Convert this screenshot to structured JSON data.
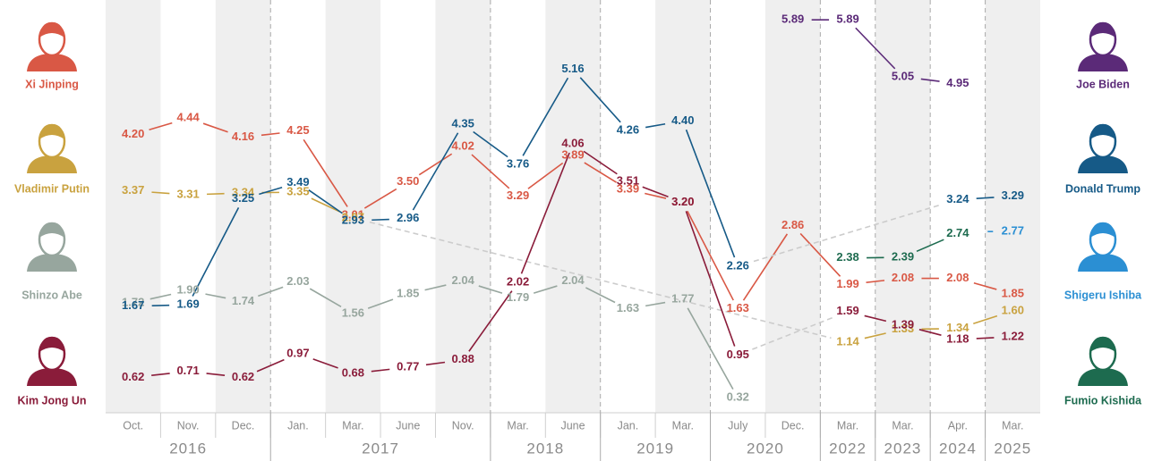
{
  "chart_data": {
    "type": "line",
    "groups": [
      {
        "year": "2016",
        "months": [
          "Oct.",
          "Nov.",
          "Dec."
        ]
      },
      {
        "year": "2017",
        "months": [
          "Jan.",
          "Mar.",
          "June",
          "Nov."
        ]
      },
      {
        "year": "2018",
        "months": [
          "Mar.",
          "June"
        ]
      },
      {
        "year": "2019",
        "months": [
          "Jan.",
          "Mar."
        ]
      },
      {
        "year": "2020",
        "months": [
          "July",
          "Dec."
        ]
      },
      {
        "year": "2022",
        "months": [
          "Mar."
        ]
      },
      {
        "year": "2023",
        "months": [
          "Mar."
        ]
      },
      {
        "year": "2024",
        "months": [
          "Apr."
        ]
      },
      {
        "year": "2025",
        "months": [
          "Mar."
        ]
      }
    ],
    "ylim": [
      0.1,
      6.05
    ],
    "series": [
      {
        "name": "Xi Jinping",
        "color": "#d95845",
        "legend": "left",
        "values": [
          4.2,
          4.44,
          4.16,
          4.25,
          3.01,
          3.5,
          4.02,
          3.29,
          3.89,
          3.39,
          3.2,
          1.63,
          2.86,
          1.99,
          2.08,
          2.08,
          1.85
        ],
        "value_labels": [
          "4.20",
          "4.44",
          "4.16",
          "4.25",
          "3.01",
          "3.50",
          "4.02",
          "3.29",
          "3.89",
          "3.39",
          "3.20",
          "1.63",
          "2.86",
          "1.99",
          "2.08",
          "2.08",
          "1.85"
        ]
      },
      {
        "name": "Vladimir Putin",
        "color": "#c9a23f",
        "legend": "left",
        "values": [
          3.37,
          3.31,
          3.34,
          3.35,
          2.97,
          null,
          null,
          null,
          null,
          null,
          null,
          null,
          null,
          1.14,
          1.33,
          1.34,
          1.6
        ],
        "value_labels": [
          "3.37",
          "3.31",
          "3.34",
          "3.35",
          "2.97",
          null,
          null,
          null,
          null,
          null,
          null,
          null,
          null,
          "1.14",
          "1.33",
          "1.34",
          "1.60"
        ]
      },
      {
        "name": "Shinzo Abe",
        "color": "#97a69e",
        "legend": "left",
        "values": [
          1.72,
          1.9,
          1.74,
          2.03,
          1.56,
          1.85,
          2.04,
          1.79,
          2.04,
          1.63,
          1.77,
          0.32,
          null,
          null,
          null,
          null,
          null
        ],
        "value_labels": [
          "1.72",
          "1.90",
          "1.74",
          "2.03",
          "1.56",
          "1.85",
          "2.04",
          "1.79",
          "2.04",
          "1.63",
          "1.77",
          "0.32",
          null,
          null,
          null,
          null,
          null
        ]
      },
      {
        "name": "Kim Jong Un",
        "color": "#8a1c3a",
        "legend": "left",
        "values": [
          0.62,
          0.71,
          0.62,
          0.97,
          0.68,
          0.77,
          0.88,
          2.02,
          4.06,
          3.51,
          3.2,
          0.95,
          null,
          1.59,
          1.39,
          1.18,
          1.22
        ],
        "value_labels": [
          "0.62",
          "0.71",
          "0.62",
          "0.97",
          "0.68",
          "0.77",
          "0.88",
          "2.02",
          "4.06",
          "3.51",
          "3.20",
          "0.95",
          null,
          "1.59",
          "1.39",
          "1.18",
          "1.22"
        ]
      },
      {
        "name": "Joe Biden",
        "color": "#5b2a78",
        "legend": "right",
        "values": [
          null,
          null,
          null,
          null,
          null,
          null,
          null,
          null,
          null,
          null,
          null,
          null,
          5.89,
          5.89,
          5.05,
          4.95,
          null
        ],
        "value_labels": [
          null,
          null,
          null,
          null,
          null,
          null,
          null,
          null,
          null,
          null,
          null,
          null,
          "5.89",
          "5.89",
          "5.05",
          "4.95",
          null
        ]
      },
      {
        "name": "Donald Trump",
        "color": "#165a87",
        "legend": "right",
        "values": [
          1.67,
          1.69,
          3.25,
          3.49,
          2.93,
          2.96,
          4.35,
          3.76,
          5.16,
          4.26,
          4.4,
          2.26,
          null,
          null,
          null,
          3.24,
          3.29
        ],
        "value_labels": [
          "1.67",
          "1.69",
          "3.25",
          "3.49",
          "2.93",
          "2.96",
          "4.35",
          "3.76",
          "5.16",
          "4.26",
          "4.40",
          "2.26",
          null,
          null,
          null,
          "3.24",
          "3.29"
        ]
      },
      {
        "name": "Shigeru Ishiba",
        "color": "#2b8fd3",
        "legend": "right",
        "values": [
          null,
          null,
          null,
          null,
          null,
          null,
          null,
          null,
          null,
          null,
          null,
          null,
          null,
          null,
          null,
          null,
          2.77
        ],
        "value_labels": [
          null,
          null,
          null,
          null,
          null,
          null,
          null,
          null,
          null,
          null,
          null,
          null,
          null,
          null,
          null,
          null,
          "2.77"
        ]
      },
      {
        "name": "Fumio Kishida",
        "color": "#1d6b4f",
        "legend": "right",
        "values": [
          null,
          null,
          null,
          null,
          null,
          null,
          null,
          null,
          null,
          null,
          null,
          null,
          null,
          2.38,
          2.39,
          2.74,
          null
        ],
        "value_labels": [
          null,
          null,
          null,
          null,
          null,
          null,
          null,
          null,
          null,
          null,
          null,
          null,
          null,
          "2.38",
          "2.39",
          "2.74",
          null
        ]
      }
    ]
  }
}
